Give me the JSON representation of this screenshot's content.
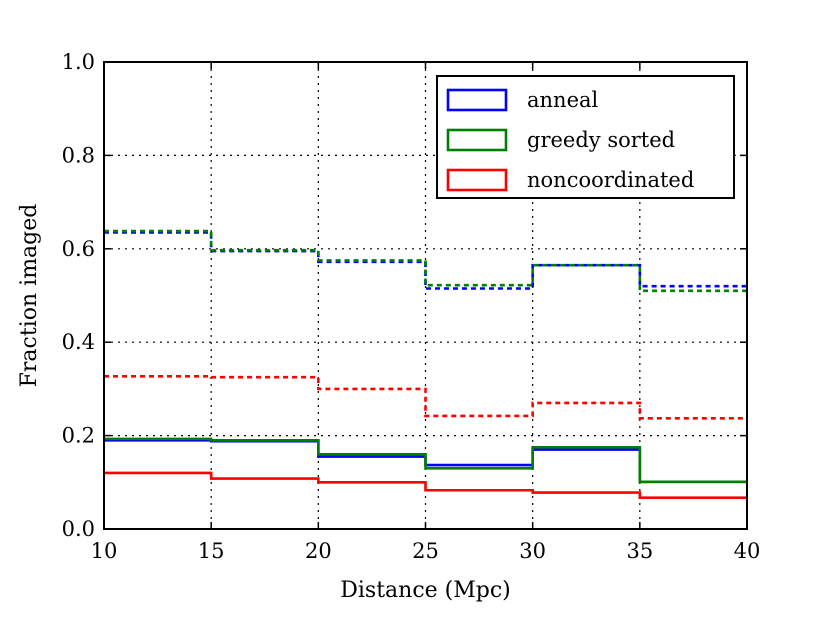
{
  "chart_data": {
    "type": "line",
    "style": "step",
    "xlabel": "Distance (Mpc)",
    "ylabel": "Fraction imaged",
    "xlim": [
      10,
      40
    ],
    "ylim": [
      0.0,
      1.0
    ],
    "x_ticks": [
      "10",
      "15",
      "20",
      "25",
      "30",
      "35",
      "40"
    ],
    "y_ticks": [
      "0.0",
      "0.2",
      "0.4",
      "0.6",
      "0.8",
      "1.0"
    ],
    "grid": true,
    "legend_position": "top-right",
    "bin_edges": [
      10,
      15,
      20,
      25,
      30,
      35,
      40
    ],
    "series": [
      {
        "name": "anneal",
        "color": "#0000ff",
        "dash": "solid",
        "values": [
          0.19,
          0.188,
          0.155,
          0.137,
          0.17,
          0.101
        ]
      },
      {
        "name": "greedy sorted",
        "color": "#008000",
        "dash": "solid",
        "values": [
          0.193,
          0.19,
          0.16,
          0.13,
          0.175,
          0.101
        ]
      },
      {
        "name": "noncoordinated",
        "color": "#ff0000",
        "dash": "solid",
        "values": [
          0.12,
          0.108,
          0.1,
          0.083,
          0.078,
          0.067
        ]
      },
      {
        "name": "",
        "color": "#0000ff",
        "dash": "dashed",
        "values": [
          0.635,
          0.595,
          0.572,
          0.515,
          0.565,
          0.52
        ]
      },
      {
        "name": "",
        "color": "#008000",
        "dash": "dashed",
        "values": [
          0.638,
          0.597,
          0.575,
          0.522,
          0.565,
          0.51
        ]
      },
      {
        "name": "",
        "color": "#ff0000",
        "dash": "dashed",
        "values": [
          0.327,
          0.325,
          0.3,
          0.242,
          0.27,
          0.237
        ]
      }
    ]
  }
}
